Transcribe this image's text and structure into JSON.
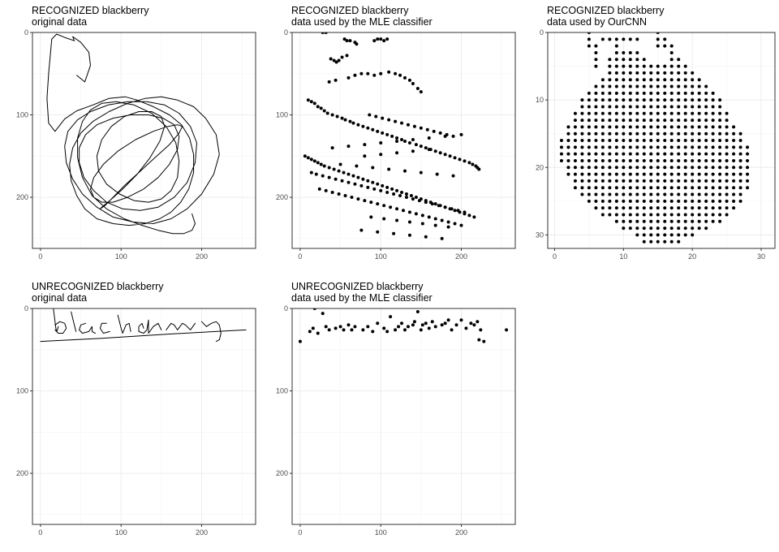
{
  "chart_data": [
    {
      "type": "line",
      "title": "RECOGNIZED blackberry",
      "subtitle": "original data",
      "xlim": [
        -10,
        267
      ],
      "ylim": [
        0,
        262
      ],
      "y_reversed": true,
      "x_ticks": [
        0,
        100,
        200
      ],
      "y_ticks": [
        0,
        100,
        200
      ],
      "grid": true,
      "series": [
        {
          "x": [
            45,
            55,
            62,
            60,
            50,
            40,
            42,
            30,
            20,
            14,
            10,
            8,
            10,
            18,
            30,
            45,
            65,
            85,
            105,
            120,
            140,
            160,
            175,
            185,
            190,
            190,
            184,
            174,
            162,
            148,
            130,
            110,
            90,
            70,
            55,
            45,
            38,
            36,
            40,
            50,
            65,
            85,
            108,
            130,
            150,
            170,
            190,
            205,
            218,
            222,
            215,
            200,
            182,
            162,
            140,
            115,
            90,
            70,
            52,
            40,
            32,
            30,
            34,
            46,
            62,
            84,
            108,
            132,
            154,
            172,
            186,
            194,
            192,
            182,
            166,
            146,
            124,
            102,
            82,
            66,
            54,
            48,
            48,
            56,
            70,
            90,
            112,
            134,
            152,
            166,
            172,
            170,
            160,
            146,
            128,
            108,
            90,
            76,
            66,
            62,
            66,
            78,
            96,
            118,
            140,
            158,
            170,
            176,
            172,
            160,
            142,
            122,
            104,
            90,
            80,
            74,
            76,
            86,
            102,
            120,
            136,
            148,
            154,
            150,
            138,
            122,
            104,
            88,
            76,
            70,
            72,
            82,
            98,
            116,
            134,
            150,
            162,
            170,
            172,
            168,
            156,
            138,
            116,
            94,
            76,
            62,
            52,
            46,
            46,
            52,
            64,
            82,
            104,
            126,
            146,
            164,
            178,
            188,
            192,
            188
          ],
          "y": [
            52,
            60,
            40,
            24,
            12,
            5,
            10,
            6,
            2,
            8,
            50,
            80,
            110,
            120,
            105,
            95,
            88,
            80,
            78,
            82,
            90,
            100,
            112,
            128,
            148,
            170,
            190,
            206,
            218,
            226,
            232,
            234,
            232,
            226,
            214,
            198,
            180,
            160,
            140,
            122,
            108,
            96,
            86,
            80,
            78,
            82,
            90,
            104,
            124,
            148,
            172,
            196,
            214,
            226,
            232,
            230,
            224,
            212,
            196,
            178,
            158,
            138,
            120,
            106,
            96,
            88,
            84,
            84,
            88,
            98,
            114,
            134,
            158,
            182,
            200,
            212,
            216,
            214,
            206,
            192,
            176,
            158,
            140,
            124,
            112,
            104,
            100,
            100,
            104,
            112,
            126,
            142,
            160,
            176,
            190,
            200,
            206,
            206,
            200,
            190,
            176,
            160,
            144,
            130,
            120,
            114,
            112,
            114,
            122,
            136,
            152,
            170,
            186,
            200,
            210,
            214,
            212,
            204,
            190,
            172,
            152,
            132,
            114,
            102,
            96,
            96,
            102,
            114,
            130,
            150,
            168,
            184,
            196,
            204,
            206,
            202,
            192,
            176,
            156,
            134,
            114,
            98,
            88,
            84,
            86,
            94,
            108,
            128,
            152,
            176,
            198,
            214,
            226,
            234,
            240,
            244,
            244,
            240,
            232,
            220
          ]
        }
      ]
    },
    {
      "type": "scatter",
      "title": "RECOGNIZED blackberry",
      "subtitle": "data used by the MLE classifier",
      "xlim": [
        -10,
        267
      ],
      "ylim": [
        0,
        262
      ],
      "y_reversed": true,
      "x_ticks": [
        0,
        100,
        200
      ],
      "y_ticks": [
        0,
        100,
        200
      ],
      "grid": true,
      "series": [
        {
          "x": [
            28,
            32,
            55,
            58,
            62,
            68,
            70,
            92,
            96,
            100,
            104,
            108,
            38,
            42,
            45,
            48,
            52,
            58,
            36,
            44,
            60,
            68,
            76,
            84,
            92,
            100,
            110,
            118,
            124,
            130,
            136,
            140,
            146,
            150,
            10,
            14,
            18,
            22,
            26,
            30,
            34,
            40,
            46,
            52,
            56,
            62,
            66,
            72,
            78,
            84,
            90,
            96,
            102,
            108,
            114,
            120,
            126,
            130,
            136,
            144,
            150,
            156,
            162,
            168,
            174,
            180,
            186,
            192,
            198,
            204,
            210,
            214,
            218,
            220,
            222,
            6,
            10,
            14,
            18,
            22,
            26,
            30,
            36,
            42,
            48,
            54,
            60,
            66,
            72,
            78,
            84,
            90,
            96,
            102,
            108,
            114,
            120,
            126,
            132,
            138,
            144,
            150,
            156,
            162,
            168,
            174,
            180,
            186,
            192,
            198,
            204,
            210,
            216,
            14,
            20,
            28,
            36,
            44,
            52,
            60,
            68,
            76,
            84,
            92,
            100,
            108,
            116,
            124,
            132,
            140,
            148,
            156,
            164,
            172,
            180,
            188,
            196,
            204,
            24,
            32,
            40,
            48,
            56,
            64,
            72,
            80,
            88,
            96,
            104,
            112,
            120,
            128,
            136,
            144,
            152,
            160,
            168,
            176,
            184,
            192,
            200,
            40,
            60,
            80,
            100,
            120,
            140,
            160,
            180,
            200,
            86,
            94,
            102,
            110,
            118,
            126,
            134,
            142,
            150,
            158,
            166,
            174,
            182,
            190,
            50,
            70,
            90,
            110,
            130,
            150,
            170,
            190,
            88,
            104,
            120,
            136,
            152,
            168,
            184,
            76,
            96,
            116,
            136,
            156,
            176,
            80,
            100,
            120,
            140,
            160
          ],
          "y": [
            0,
            0,
            8,
            10,
            10,
            12,
            14,
            10,
            8,
            8,
            10,
            8,
            32,
            34,
            36,
            34,
            30,
            28,
            60,
            58,
            55,
            52,
            50,
            50,
            52,
            50,
            48,
            50,
            52,
            55,
            58,
            62,
            68,
            72,
            82,
            84,
            86,
            90,
            92,
            95,
            98,
            100,
            102,
            104,
            106,
            108,
            110,
            112,
            114,
            116,
            118,
            120,
            122,
            124,
            126,
            128,
            130,
            132,
            134,
            136,
            138,
            140,
            142,
            144,
            146,
            148,
            150,
            152,
            154,
            156,
            158,
            160,
            162,
            164,
            166,
            150,
            152,
            154,
            156,
            158,
            160,
            162,
            164,
            166,
            168,
            170,
            172,
            174,
            176,
            178,
            180,
            182,
            184,
            186,
            188,
            190,
            192,
            194,
            196,
            198,
            200,
            202,
            204,
            206,
            208,
            210,
            212,
            214,
            216,
            218,
            220,
            222,
            224,
            170,
            172,
            174,
            176,
            178,
            180,
            182,
            184,
            186,
            188,
            190,
            192,
            194,
            196,
            198,
            200,
            202,
            204,
            206,
            208,
            210,
            212,
            214,
            216,
            218,
            190,
            192,
            194,
            196,
            198,
            200,
            202,
            204,
            206,
            208,
            210,
            212,
            214,
            216,
            218,
            220,
            222,
            224,
            226,
            228,
            230,
            232,
            234,
            140,
            138,
            136,
            134,
            132,
            130,
            128,
            126,
            124,
            100,
            102,
            104,
            106,
            108,
            110,
            112,
            114,
            116,
            118,
            120,
            122,
            124,
            126,
            160,
            162,
            164,
            166,
            168,
            170,
            172,
            174,
            224,
            226,
            228,
            230,
            232,
            234,
            236,
            240,
            242,
            244,
            246,
            248,
            250,
            150,
            148,
            146,
            144,
            142
          ]
        }
      ]
    },
    {
      "type": "scatter",
      "title": "RECOGNIZED blackberry",
      "subtitle": "data used by OurCNN",
      "xlim": [
        -1,
        32
      ],
      "ylim": [
        0,
        32
      ],
      "y_reversed": true,
      "x_ticks": [
        0,
        10,
        20,
        30
      ],
      "y_ticks": [
        0,
        10,
        20,
        30
      ],
      "grid": true,
      "series": [
        {
          "x": [],
          "y": []
        }
      ]
    },
    {
      "type": "line",
      "title": "UNRECOGNIZED blackberry",
      "subtitle": "original data",
      "xlim": [
        -10,
        267
      ],
      "ylim": [
        0,
        262
      ],
      "y_reversed": true,
      "x_ticks": [
        0,
        100,
        200
      ],
      "y_ticks": [
        0,
        100,
        200
      ],
      "grid": true,
      "series": [
        {
          "x": [
            0,
            80,
            160,
            255
          ],
          "y": [
            40,
            36,
            31,
            26
          ]
        },
        {
          "x": [
            16,
            17,
            18,
            19,
            20,
            21,
            22
          ],
          "y": [
            0,
            8,
            16,
            24,
            28,
            26,
            22
          ]
        },
        {
          "x": [
            18,
            24,
            30,
            32,
            28,
            22,
            18
          ],
          "y": [
            20,
            16,
            18,
            24,
            30,
            30,
            26
          ]
        },
        {
          "x": [
            38,
            40,
            42,
            44
          ],
          "y": [
            4,
            12,
            20,
            28
          ]
        },
        {
          "x": [
            56,
            50,
            48,
            52,
            60,
            64,
            64,
            68
          ],
          "y": [
            18,
            20,
            26,
            30,
            28,
            22,
            28,
            30
          ]
        },
        {
          "x": [
            82,
            76,
            74,
            78,
            86
          ],
          "y": [
            18,
            18,
            24,
            30,
            28
          ]
        },
        {
          "x": [
            96,
            98,
            100,
            102,
            106,
            110,
            112
          ],
          "y": [
            8,
            16,
            24,
            30,
            20,
            18,
            28
          ]
        },
        {
          "x": [
            128,
            126,
            122,
            122,
            128,
            132,
            134,
            134,
            140,
            146,
            150
          ],
          "y": [
            24,
            18,
            22,
            28,
            30,
            26,
            14,
            30,
            22,
            18,
            26
          ]
        },
        {
          "x": [
            156,
            162,
            166,
            170,
            176,
            180,
            186,
            192
          ],
          "y": [
            26,
            18,
            20,
            26,
            18,
            20,
            26,
            18
          ]
        },
        {
          "x": [
            200,
            206,
            212,
            218,
            222,
            224,
            222,
            218
          ],
          "y": [
            16,
            22,
            18,
            16,
            20,
            30,
            38,
            40
          ]
        }
      ]
    },
    {
      "type": "scatter",
      "title": "UNRECOGNIZED blackberry",
      "subtitle": "data used by the MLE classifier",
      "xlim": [
        -10,
        267
      ],
      "ylim": [
        0,
        262
      ],
      "y_reversed": true,
      "x_ticks": [
        0,
        100,
        200
      ],
      "y_ticks": [
        0,
        100,
        200
      ],
      "grid": true,
      "series": [
        {
          "x": [
            0,
            12,
            16,
            18,
            22,
            28,
            32,
            36,
            44,
            50,
            54,
            60,
            64,
            68,
            78,
            84,
            90,
            96,
            104,
            108,
            112,
            118,
            122,
            126,
            130,
            134,
            140,
            142,
            146,
            150,
            152,
            156,
            160,
            164,
            168,
            176,
            180,
            184,
            188,
            194,
            200,
            206,
            212,
            216,
            220,
            224,
            222,
            228,
            256
          ],
          "y": [
            40,
            28,
            24,
            0,
            30,
            6,
            22,
            26,
            24,
            22,
            26,
            20,
            26,
            22,
            26,
            22,
            28,
            18,
            24,
            28,
            10,
            26,
            22,
            18,
            26,
            22,
            20,
            16,
            4,
            26,
            20,
            18,
            24,
            16,
            22,
            20,
            18,
            14,
            26,
            20,
            14,
            24,
            18,
            20,
            16,
            26,
            38,
            40,
            26
          ]
        }
      ]
    }
  ]
}
